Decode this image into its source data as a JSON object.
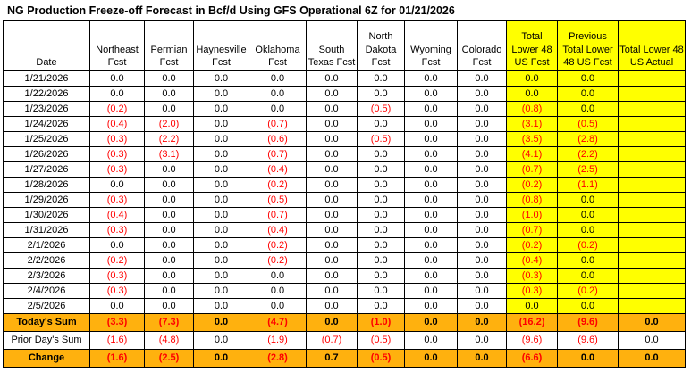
{
  "title": "NG Production Freeze-off Forecast in Bcf/d Using GFS Operational 6Z for 01/21/2026",
  "columns": [
    {
      "label": "Date",
      "highlight": false
    },
    {
      "label": "Northeast Fcst",
      "highlight": false
    },
    {
      "label": "Permian Fcst",
      "highlight": false
    },
    {
      "label": "Haynesville Fcst",
      "highlight": false
    },
    {
      "label": "Oklahoma Fcst",
      "highlight": false
    },
    {
      "label": "South Texas Fcst",
      "highlight": false
    },
    {
      "label": "North Dakota Fcst",
      "highlight": false
    },
    {
      "label": "Wyoming Fcst",
      "highlight": false
    },
    {
      "label": "Colorado Fcst",
      "highlight": false
    },
    {
      "label": "Total Lower 48 US Fcst",
      "highlight": true
    },
    {
      "label": "Previous Total Lower 48 US Fcst",
      "highlight": true
    },
    {
      "label": "Total Lower 48 US Actual",
      "highlight": true
    }
  ],
  "rows": [
    {
      "date": "1/21/2026",
      "values": [
        "0.0",
        "0.0",
        "0.0",
        "0.0",
        "0.0",
        "0.0",
        "0.0",
        "0.0",
        "0.0",
        "0.0",
        ""
      ]
    },
    {
      "date": "1/22/2026",
      "values": [
        "0.0",
        "0.0",
        "0.0",
        "0.0",
        "0.0",
        "0.0",
        "0.0",
        "0.0",
        "0.0",
        "0.0",
        ""
      ]
    },
    {
      "date": "1/23/2026",
      "values": [
        "(0.2)",
        "0.0",
        "0.0",
        "0.0",
        "0.0",
        "(0.5)",
        "0.0",
        "0.0",
        "(0.8)",
        "0.0",
        ""
      ]
    },
    {
      "date": "1/24/2026",
      "values": [
        "(0.4)",
        "(2.0)",
        "0.0",
        "(0.7)",
        "0.0",
        "0.0",
        "0.0",
        "0.0",
        "(3.1)",
        "(0.5)",
        ""
      ]
    },
    {
      "date": "1/25/2026",
      "values": [
        "(0.3)",
        "(2.2)",
        "0.0",
        "(0.6)",
        "0.0",
        "(0.5)",
        "0.0",
        "0.0",
        "(3.5)",
        "(2.8)",
        ""
      ]
    },
    {
      "date": "1/26/2026",
      "values": [
        "(0.3)",
        "(3.1)",
        "0.0",
        "(0.7)",
        "0.0",
        "0.0",
        "0.0",
        "0.0",
        "(4.1)",
        "(2.2)",
        ""
      ]
    },
    {
      "date": "1/27/2026",
      "values": [
        "(0.3)",
        "0.0",
        "0.0",
        "(0.4)",
        "0.0",
        "0.0",
        "0.0",
        "0.0",
        "(0.7)",
        "(2.5)",
        ""
      ]
    },
    {
      "date": "1/28/2026",
      "values": [
        "0.0",
        "0.0",
        "0.0",
        "(0.2)",
        "0.0",
        "0.0",
        "0.0",
        "0.0",
        "(0.2)",
        "(1.1)",
        ""
      ]
    },
    {
      "date": "1/29/2026",
      "values": [
        "(0.3)",
        "0.0",
        "0.0",
        "(0.5)",
        "0.0",
        "0.0",
        "0.0",
        "0.0",
        "(0.8)",
        "0.0",
        ""
      ]
    },
    {
      "date": "1/30/2026",
      "values": [
        "(0.4)",
        "0.0",
        "0.0",
        "(0.7)",
        "0.0",
        "0.0",
        "0.0",
        "0.0",
        "(1.0)",
        "0.0",
        ""
      ]
    },
    {
      "date": "1/31/2026",
      "values": [
        "(0.3)",
        "0.0",
        "0.0",
        "(0.4)",
        "0.0",
        "0.0",
        "0.0",
        "0.0",
        "(0.7)",
        "0.0",
        ""
      ]
    },
    {
      "date": "2/1/2026",
      "values": [
        "0.0",
        "0.0",
        "0.0",
        "(0.2)",
        "0.0",
        "0.0",
        "0.0",
        "0.0",
        "(0.2)",
        "(0.2)",
        ""
      ]
    },
    {
      "date": "2/2/2026",
      "values": [
        "(0.2)",
        "0.0",
        "0.0",
        "(0.2)",
        "0.0",
        "0.0",
        "0.0",
        "0.0",
        "(0.4)",
        "0.0",
        ""
      ]
    },
    {
      "date": "2/3/2026",
      "values": [
        "(0.3)",
        "0.0",
        "0.0",
        "0.0",
        "0.0",
        "0.0",
        "0.0",
        "0.0",
        "(0.3)",
        "0.0",
        ""
      ]
    },
    {
      "date": "2/4/2026",
      "values": [
        "(0.3)",
        "0.0",
        "0.0",
        "0.0",
        "0.0",
        "0.0",
        "0.0",
        "0.0",
        "(0.3)",
        "(0.2)",
        ""
      ]
    },
    {
      "date": "2/5/2026",
      "values": [
        "0.0",
        "0.0",
        "0.0",
        "0.0",
        "0.0",
        "0.0",
        "0.0",
        "0.0",
        "0.0",
        "0.0",
        ""
      ]
    }
  ],
  "summary_rows": [
    {
      "label": "Today's Sum",
      "style": "orange",
      "values": [
        "(3.3)",
        "(7.3)",
        "0.0",
        "(4.7)",
        "0.0",
        "(1.0)",
        "0.0",
        "0.0",
        "(16.2)",
        "(9.6)",
        "0.0"
      ]
    },
    {
      "label": "Prior Day's Sum",
      "style": "plain",
      "values": [
        "(1.6)",
        "(4.8)",
        "0.0",
        "(1.9)",
        "(0.7)",
        "(0.5)",
        "0.0",
        "0.0",
        "(9.6)",
        "(9.6)",
        "0.0"
      ]
    },
    {
      "label": "Change",
      "style": "orange",
      "values": [
        "(1.6)",
        "(2.5)",
        "0.0",
        "(2.8)",
        "0.7",
        "(0.5)",
        "0.0",
        "0.0",
        "(6.6)",
        "0.0",
        "0.0"
      ]
    }
  ],
  "colors": {
    "header_highlight": "#FFFF00",
    "summary_highlight": "#FFB10E",
    "negative_text": "#FF0000",
    "text": "#000000",
    "border": "#000000",
    "background": "#FFFFFF"
  }
}
